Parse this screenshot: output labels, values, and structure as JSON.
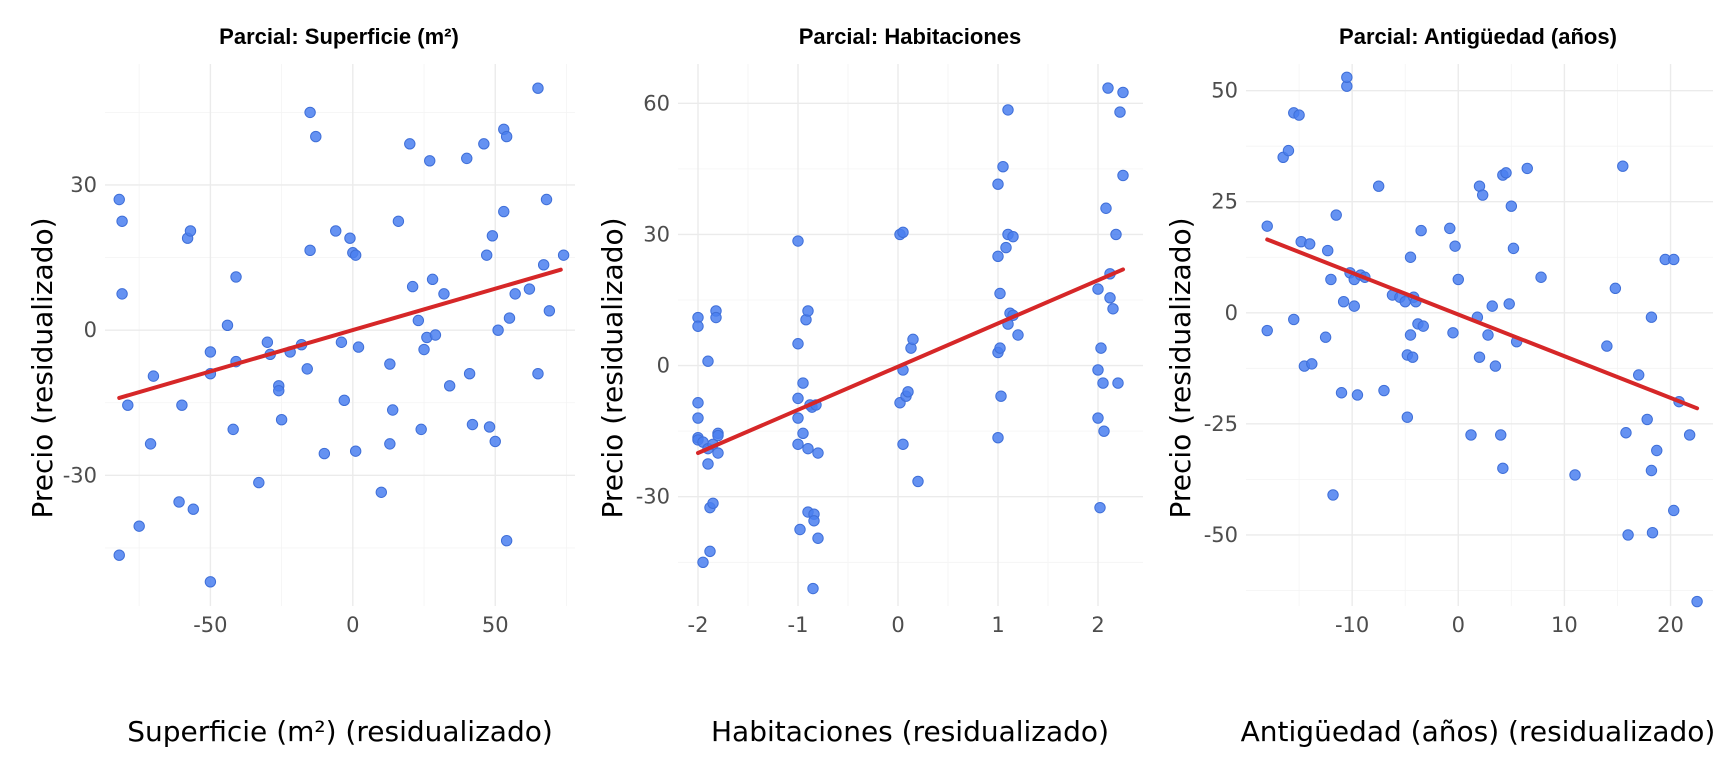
{
  "colors": {
    "points": "#4a7ff0",
    "fit_line": "#d62728",
    "grid": "#ebebeb"
  },
  "chart_data": [
    {
      "type": "scatter",
      "title": "Parcial: Superficie (m²)",
      "xlabel": "Superficie (m²) (residualizado)",
      "ylabel": "Precio (residualizado)",
      "xlim": [
        -87,
        78
      ],
      "ylim": [
        -57,
        55
      ],
      "xticks": [
        -50,
        0,
        50
      ],
      "yticks": [
        -30,
        0,
        30
      ],
      "xtick_labels": [
        "-50",
        "0",
        "50"
      ],
      "ytick_labels": [
        "-30",
        "0",
        "30"
      ],
      "grid": true,
      "fit_line": {
        "x": [
          -82,
          73
        ],
        "y": [
          -14,
          12.5
        ]
      },
      "points": [
        [
          -82,
          27
        ],
        [
          -81,
          22.5
        ],
        [
          -81,
          7.5
        ],
        [
          -79,
          -15.5
        ],
        [
          -82,
          -46.5
        ],
        [
          -75,
          -40.5
        ],
        [
          -71,
          -23.5
        ],
        [
          -70,
          -9.5
        ],
        [
          -60,
          -15.5
        ],
        [
          -61,
          -35.5
        ],
        [
          -58,
          19
        ],
        [
          -57,
          20.5
        ],
        [
          -56,
          -37
        ],
        [
          -50,
          -52
        ],
        [
          -50,
          -4.5
        ],
        [
          -50,
          -9
        ],
        [
          -44,
          1
        ],
        [
          -41,
          11
        ],
        [
          -41,
          -6.5
        ],
        [
          -42,
          -20.5
        ],
        [
          -33,
          -31.5
        ],
        [
          -30,
          -2.5
        ],
        [
          -29,
          -5
        ],
        [
          -26,
          -11.5
        ],
        [
          -26,
          -12.5
        ],
        [
          -25,
          -18.5
        ],
        [
          -22,
          -4.5
        ],
        [
          -18,
          -3
        ],
        [
          -16,
          -8
        ],
        [
          -15,
          45
        ],
        [
          -15,
          16.5
        ],
        [
          -13,
          40
        ],
        [
          -10,
          -25.5
        ],
        [
          -6,
          20.5
        ],
        [
          -4,
          -2.5
        ],
        [
          -3,
          -14.5
        ],
        [
          -1,
          19
        ],
        [
          0,
          16
        ],
        [
          1,
          15.5
        ],
        [
          1,
          -25
        ],
        [
          2,
          -3.5
        ],
        [
          10,
          -33.5
        ],
        [
          13,
          -7
        ],
        [
          13,
          -23.5
        ],
        [
          14,
          -16.5
        ],
        [
          16,
          22.5
        ],
        [
          20,
          38.5
        ],
        [
          21,
          9
        ],
        [
          23,
          2
        ],
        [
          24,
          -20.5
        ],
        [
          25,
          -4
        ],
        [
          26,
          -1.5
        ],
        [
          27,
          35
        ],
        [
          28,
          10.5
        ],
        [
          29,
          -1
        ],
        [
          32,
          7.5
        ],
        [
          34,
          -11.5
        ],
        [
          40,
          35.5
        ],
        [
          41,
          -9
        ],
        [
          42,
          -19.5
        ],
        [
          46,
          38.5
        ],
        [
          47,
          15.5
        ],
        [
          48,
          -20
        ],
        [
          49,
          19.5
        ],
        [
          50,
          -23
        ],
        [
          51,
          0
        ],
        [
          53,
          24.5
        ],
        [
          53,
          41.5
        ],
        [
          54,
          40
        ],
        [
          54,
          -43.5
        ],
        [
          55,
          2.5
        ],
        [
          57,
          7.5
        ],
        [
          62,
          8.5
        ],
        [
          65,
          50
        ],
        [
          65,
          -9
        ],
        [
          67,
          13.5
        ],
        [
          68,
          27
        ],
        [
          69,
          4
        ],
        [
          74,
          15.5
        ]
      ]
    },
    {
      "type": "scatter",
      "title": "Parcial: Habitaciones",
      "xlabel": "Habitaciones (residualizado)",
      "ylabel": "Precio (residualizado)",
      "xlim": [
        -2.2,
        2.45
      ],
      "ylim": [
        -55,
        69
      ],
      "xticks": [
        -2,
        -1,
        0,
        1,
        2
      ],
      "yticks": [
        -30,
        0,
        30,
        60
      ],
      "xtick_labels": [
        "-2",
        "-1",
        "0",
        "1",
        "2"
      ],
      "ytick_labels": [
        "-30",
        "0",
        "30",
        "60"
      ],
      "grid": true,
      "fit_line": {
        "x": [
          -2,
          2.25
        ],
        "y": [
          -20,
          22
        ]
      },
      "points": [
        [
          -2,
          11
        ],
        [
          -2,
          9
        ],
        [
          -2,
          -8.5
        ],
        [
          -2,
          -12
        ],
        [
          -2,
          -16.5
        ],
        [
          -2,
          -17
        ],
        [
          -1.95,
          -17.5
        ],
        [
          -1.95,
          -45
        ],
        [
          -1.9,
          -22.5
        ],
        [
          -1.9,
          -19
        ],
        [
          -1.9,
          1
        ],
        [
          -1.88,
          -42.5
        ],
        [
          -1.88,
          -32.5
        ],
        [
          -1.85,
          -31.5
        ],
        [
          -1.85,
          -18
        ],
        [
          -1.82,
          12.5
        ],
        [
          -1.82,
          11
        ],
        [
          -1.8,
          -15.5
        ],
        [
          -1.8,
          -20
        ],
        [
          -1.8,
          -16
        ],
        [
          -1,
          28.5
        ],
        [
          -1,
          5
        ],
        [
          -1,
          -7.5
        ],
        [
          -1,
          -12
        ],
        [
          -1,
          -18
        ],
        [
          -0.98,
          -37.5
        ],
        [
          -0.95,
          -4
        ],
        [
          -0.95,
          -15.5
        ],
        [
          -0.92,
          10.5
        ],
        [
          -0.9,
          12.5
        ],
        [
          -0.9,
          -19
        ],
        [
          -0.9,
          -33.5
        ],
        [
          -0.88,
          -9
        ],
        [
          -0.86,
          -9.5
        ],
        [
          -0.85,
          -51
        ],
        [
          -0.84,
          -34
        ],
        [
          -0.84,
          -35.5
        ],
        [
          -0.82,
          -9
        ],
        [
          -0.8,
          -20
        ],
        [
          -0.8,
          -39.5
        ],
        [
          0.02,
          -8.5
        ],
        [
          0.02,
          30
        ],
        [
          0.05,
          30.5
        ],
        [
          0.05,
          -1
        ],
        [
          0.05,
          -18
        ],
        [
          0.08,
          -7
        ],
        [
          0.1,
          -6
        ],
        [
          0.13,
          4
        ],
        [
          0.15,
          6
        ],
        [
          0.2,
          -26.5
        ],
        [
          1,
          41.5
        ],
        [
          1,
          25
        ],
        [
          1,
          3
        ],
        [
          1,
          -16.5
        ],
        [
          1.02,
          16.5
        ],
        [
          1.02,
          4
        ],
        [
          1.03,
          -7
        ],
        [
          1.05,
          45.5
        ],
        [
          1.08,
          27
        ],
        [
          1.1,
          58.5
        ],
        [
          1.1,
          30
        ],
        [
          1.1,
          9.5
        ],
        [
          1.12,
          12
        ],
        [
          1.15,
          29.5
        ],
        [
          1.15,
          11.5
        ],
        [
          1.2,
          7
        ],
        [
          2,
          -12
        ],
        [
          2,
          -1
        ],
        [
          2,
          17.5
        ],
        [
          2.02,
          -32.5
        ],
        [
          2.03,
          4
        ],
        [
          2.05,
          -4
        ],
        [
          2.06,
          -15
        ],
        [
          2.08,
          36
        ],
        [
          2.1,
          63.5
        ],
        [
          2.12,
          21
        ],
        [
          2.12,
          15.5
        ],
        [
          2.15,
          13
        ],
        [
          2.18,
          30
        ],
        [
          2.2,
          -4
        ],
        [
          2.22,
          58
        ],
        [
          2.25,
          62.5
        ],
        [
          2.25,
          43.5
        ]
      ]
    },
    {
      "type": "scatter",
      "title": "Parcial: Antigüedad (años)",
      "xlabel": "Antigüedad (años) (residualizado)",
      "ylabel": "Precio (residualizado)",
      "xlim": [
        -20,
        24
      ],
      "ylim": [
        -66,
        56
      ],
      "xticks": [
        -10,
        0,
        10,
        20
      ],
      "yticks": [
        -50,
        -25,
        0,
        25,
        50
      ],
      "xtick_labels": [
        "-10",
        "0",
        "10",
        "20"
      ],
      "ytick_labels": [
        "-50",
        "-25",
        "0",
        "25",
        "50"
      ],
      "grid": true,
      "fit_line": {
        "x": [
          -18,
          22.5
        ],
        "y": [
          16.5,
          -21.5
        ]
      },
      "points": [
        [
          -18,
          19.5
        ],
        [
          -18,
          -4
        ],
        [
          -16.5,
          35
        ],
        [
          -16,
          36.5
        ],
        [
          -15.5,
          45
        ],
        [
          -15.5,
          -1.5
        ],
        [
          -15,
          44.5
        ],
        [
          -14.8,
          16
        ],
        [
          -14.5,
          -12
        ],
        [
          -14,
          15.5
        ],
        [
          -13.8,
          -11.5
        ],
        [
          -12.5,
          -5.5
        ],
        [
          -12.3,
          14
        ],
        [
          -12,
          7.5
        ],
        [
          -11.8,
          -41
        ],
        [
          -11.5,
          22
        ],
        [
          -11,
          -18
        ],
        [
          -10.8,
          2.5
        ],
        [
          -10.5,
          51
        ],
        [
          -10.5,
          53
        ],
        [
          -10.2,
          9
        ],
        [
          -9.8,
          7.5
        ],
        [
          -9.8,
          1.5
        ],
        [
          -9.5,
          -18.5
        ],
        [
          -9.2,
          8.5
        ],
        [
          -8.8,
          8
        ],
        [
          -7.5,
          28.5
        ],
        [
          -7,
          -17.5
        ],
        [
          -6.2,
          4
        ],
        [
          -5.5,
          3.5
        ],
        [
          -5,
          2.5
        ],
        [
          -4.8,
          -9.5
        ],
        [
          -4.8,
          -23.5
        ],
        [
          -4.5,
          12.5
        ],
        [
          -4.5,
          -5
        ],
        [
          -4.3,
          -10
        ],
        [
          -4.2,
          3.5
        ],
        [
          -4,
          2.5
        ],
        [
          -3.8,
          -2.5
        ],
        [
          -3.5,
          18.5
        ],
        [
          -3.3,
          -3
        ],
        [
          -0.8,
          19
        ],
        [
          -0.5,
          -4.5
        ],
        [
          -0.3,
          15
        ],
        [
          0,
          7.5
        ],
        [
          1.2,
          -27.5
        ],
        [
          1.8,
          -1
        ],
        [
          2,
          28.5
        ],
        [
          2,
          -10
        ],
        [
          2.3,
          26.5
        ],
        [
          2.8,
          -5
        ],
        [
          3.2,
          1.5
        ],
        [
          3.5,
          -12
        ],
        [
          4,
          -27.5
        ],
        [
          4.2,
          -35
        ],
        [
          4.2,
          31
        ],
        [
          4.5,
          31.5
        ],
        [
          4.8,
          2
        ],
        [
          5,
          24
        ],
        [
          5.2,
          14.5
        ],
        [
          5.5,
          -6.5
        ],
        [
          6.5,
          32.5
        ],
        [
          7.8,
          8
        ],
        [
          11,
          -36.5
        ],
        [
          14,
          -7.5
        ],
        [
          14.8,
          5.5
        ],
        [
          15.5,
          33
        ],
        [
          15.8,
          -27
        ],
        [
          16,
          -50
        ],
        [
          17,
          -14
        ],
        [
          17.8,
          -24
        ],
        [
          18.2,
          -1
        ],
        [
          18.2,
          -35.5
        ],
        [
          18.3,
          -49.5
        ],
        [
          18.7,
          -31
        ],
        [
          19.5,
          12
        ],
        [
          20.3,
          12
        ],
        [
          20.3,
          -44.5
        ],
        [
          20.8,
          -20
        ],
        [
          21.8,
          -27.5
        ],
        [
          22.5,
          -65
        ]
      ]
    }
  ]
}
